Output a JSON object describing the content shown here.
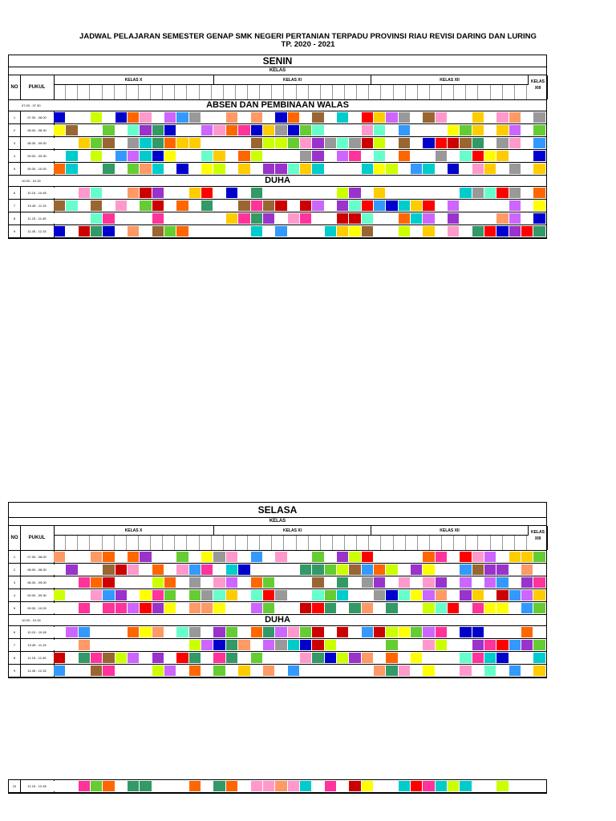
{
  "title": {
    "line1": "JADWAL PELAJARAN SEMESTER GENAP SMK NEGERI PERTANIAN TERPADU PROVINSI RIAU REVISI DARING DAN LURING",
    "line2": "TP. 2020 - 2021"
  },
  "header": {
    "kelas": "KELAS",
    "no": "NO",
    "pukul": "PUKUL",
    "kelas_x": "KELAS X",
    "kelas_xi": "KELAS XI",
    "kelas_xii": "KELAS XII",
    "kelas_xiii": "KELAS XIII"
  },
  "senin": {
    "day": "SENIN",
    "band1_time": "07.00 - 07.30",
    "band1_label": "ABSEN DAN PEMBINAAN WALAS",
    "band2_time": "10.00 - 10.15",
    "band2_label": "DUHA",
    "rows": [
      {
        "no": "1",
        "time": "07.30 - 08.00"
      },
      {
        "no": "2",
        "time": "08.00 - 08.30"
      },
      {
        "no": "3",
        "time": "08.30 - 09.00"
      },
      {
        "no": "4",
        "time": "09.00 - 09.30"
      },
      {
        "no": "5",
        "time": "09.30 - 10.00"
      },
      {
        "no": "6",
        "time": "10.15 - 10.45"
      },
      {
        "no": "7",
        "time": "10.45 - 11.15"
      },
      {
        "no": "8",
        "time": "11.15 - 11.45"
      },
      {
        "no": "9",
        "time": "11.45 - 12.15"
      }
    ]
  },
  "selasa": {
    "day": "SELASA",
    "band_time": "10.00 - 10.15",
    "band_label": "DUHA",
    "rows": [
      {
        "no": "1",
        "time": "07.30 - 08.00"
      },
      {
        "no": "2",
        "time": "08.00 - 08.30"
      },
      {
        "no": "3",
        "time": "08.30 - 09.00"
      },
      {
        "no": "4",
        "time": "09.00 - 09.30"
      },
      {
        "no": "5",
        "time": "09.30 - 10.00"
      },
      {
        "no": "6",
        "time": "10.15 - 10.45"
      },
      {
        "no": "7",
        "time": "10.45 - 11.15"
      },
      {
        "no": "8",
        "time": "11.15 - 11.45"
      },
      {
        "no": "9",
        "time": "11.45 - 12.15"
      }
    ],
    "last_row": {
      "no": "10",
      "time": "12.15 - 12.45"
    }
  },
  "palette": [
    "#ff3399",
    "#ffcc00",
    "#66cc33",
    "#3399ff",
    "#cc66ff",
    "#ff6600",
    "#00cccc",
    "#ff0000",
    "#996633",
    "#999999",
    "#ccff00",
    "#0000cc",
    "#ffffff",
    "#ff99cc",
    "#339966",
    "#cc0000",
    "#ffff00",
    "#66ffcc",
    "#9933cc",
    "#ff9966"
  ]
}
